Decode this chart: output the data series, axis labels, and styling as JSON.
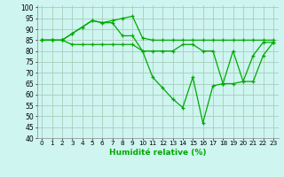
{
  "xlabel": "Humidité relative (%)",
  "background_color": "#cef5f0",
  "grid_color": "#aaccbb",
  "line_color": "#00aa00",
  "xlim": [
    -0.5,
    23.5
  ],
  "ylim": [
    40,
    101
  ],
  "yticks": [
    40,
    45,
    50,
    55,
    60,
    65,
    70,
    75,
    80,
    85,
    90,
    95,
    100
  ],
  "xticks": [
    0,
    1,
    2,
    3,
    4,
    5,
    6,
    7,
    8,
    9,
    10,
    11,
    12,
    13,
    14,
    15,
    16,
    17,
    18,
    19,
    20,
    21,
    22,
    23
  ],
  "series": [
    [
      85,
      85,
      85,
      88,
      91,
      94,
      93,
      94,
      95,
      96,
      86,
      85,
      85,
      85,
      85,
      85,
      85,
      85,
      85,
      85,
      85,
      85,
      85,
      85
    ],
    [
      85,
      85,
      85,
      88,
      91,
      94,
      93,
      93,
      87,
      87,
      80,
      80,
      80,
      80,
      83,
      83,
      80,
      80,
      65,
      65,
      66,
      78,
      84,
      84
    ],
    [
      85,
      85,
      85,
      83,
      83,
      83,
      83,
      83,
      83,
      83,
      80,
      68,
      63,
      58,
      54,
      68,
      47,
      64,
      65,
      80,
      66,
      66,
      78,
      84
    ]
  ]
}
